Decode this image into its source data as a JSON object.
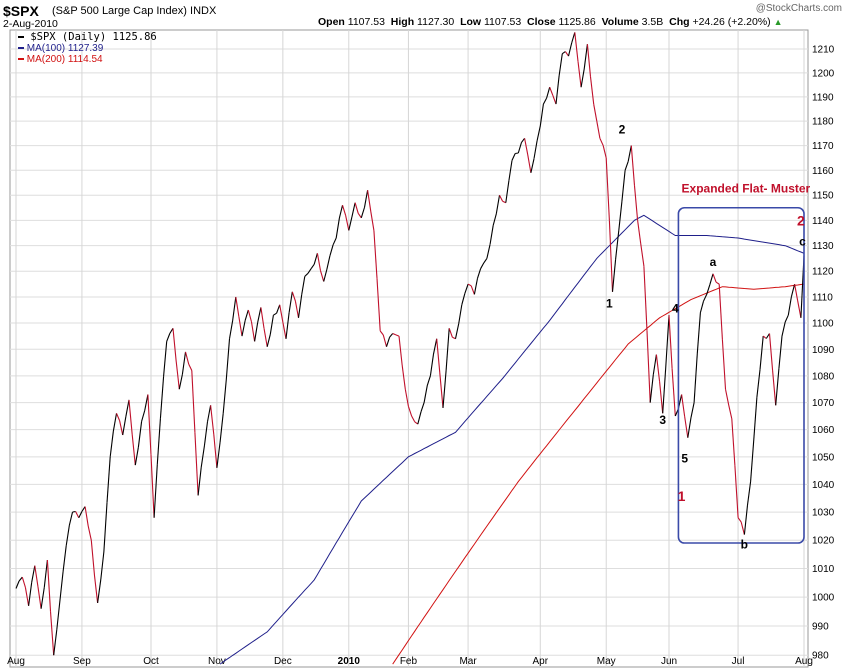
{
  "header": {
    "symbol": "$SPX",
    "name": "(S&P 500 Large Cap Index)",
    "exchange": "INDX",
    "date": "2-Aug-2010",
    "copyright": "@StockCharts.com",
    "quote": [
      {
        "label": "Open",
        "value": "1107.53"
      },
      {
        "label": "High",
        "value": "1127.30"
      },
      {
        "label": "Low",
        "value": "1107.53"
      },
      {
        "label": "Close",
        "value": "1125.86"
      },
      {
        "label": "Volume",
        "value": "3.5B"
      },
      {
        "label": "Chg",
        "value": "+24.26 (+2.20%)"
      }
    ],
    "chg_arrow": "▲"
  },
  "legend": [
    {
      "text": "$SPX (Daily) 1125.86",
      "color": "#000000"
    },
    {
      "text": "MA(100) 1127.39",
      "color": "#1f1f8a"
    },
    {
      "text": "MA(200) 1114.54",
      "color": "#d11111"
    }
  ],
  "chart_data": {
    "type": "line",
    "title": "$SPX (S&P 500 Large Cap Index) INDX",
    "ylim": [
      976,
      1218
    ],
    "grid": true,
    "scale": "log",
    "y_ticks": [
      980,
      990,
      1000,
      1010,
      1020,
      1030,
      1040,
      1050,
      1060,
      1070,
      1080,
      1090,
      1100,
      1110,
      1120,
      1130,
      1140,
      1150,
      1160,
      1170,
      1180,
      1190,
      1200,
      1210
    ],
    "x_ticks": [
      "Aug",
      "Sep",
      "Oct",
      "Nov",
      "Dec",
      "2010",
      "Feb",
      "Mar",
      "Apr",
      "May",
      "Jun",
      "Jul",
      "Aug"
    ],
    "x_tick_index": [
      0,
      21,
      43,
      64,
      85,
      106,
      125,
      144,
      167,
      188,
      208,
      230,
      251
    ],
    "series": [
      {
        "name": "$SPX (Daily)",
        "color": "#000000",
        "down_color": "#c0102b",
        "keypoints": [
          [
            0,
            1003
          ],
          [
            2,
            1007
          ],
          [
            4,
            997
          ],
          [
            6,
            1011
          ],
          [
            8,
            996
          ],
          [
            10,
            1013
          ],
          [
            12,
            980
          ],
          [
            14,
            999
          ],
          [
            16,
            1018
          ],
          [
            18,
            1030
          ],
          [
            20,
            1028
          ],
          [
            22,
            1032
          ],
          [
            24,
            1020
          ],
          [
            26,
            998
          ],
          [
            28,
            1016
          ],
          [
            30,
            1050
          ],
          [
            32,
            1066
          ],
          [
            34,
            1058
          ],
          [
            36,
            1071
          ],
          [
            38,
            1047
          ],
          [
            40,
            1063
          ],
          [
            42,
            1073
          ],
          [
            44,
            1028
          ],
          [
            46,
            1064
          ],
          [
            48,
            1093
          ],
          [
            50,
            1098
          ],
          [
            52,
            1075
          ],
          [
            54,
            1089
          ],
          [
            56,
            1082
          ],
          [
            58,
            1036
          ],
          [
            60,
            1054
          ],
          [
            62,
            1069
          ],
          [
            64,
            1046
          ],
          [
            66,
            1066
          ],
          [
            68,
            1094
          ],
          [
            70,
            1110
          ],
          [
            72,
            1095
          ],
          [
            74,
            1105
          ],
          [
            76,
            1093
          ],
          [
            78,
            1106
          ],
          [
            80,
            1091
          ],
          [
            82,
            1103
          ],
          [
            84,
            1107
          ],
          [
            86,
            1094
          ],
          [
            88,
            1112
          ],
          [
            90,
            1102
          ],
          [
            92,
            1118
          ],
          [
            94,
            1121
          ],
          [
            96,
            1127
          ],
          [
            98,
            1116
          ],
          [
            100,
            1126
          ],
          [
            102,
            1133
          ],
          [
            104,
            1146
          ],
          [
            106,
            1136
          ],
          [
            108,
            1147
          ],
          [
            110,
            1141
          ],
          [
            112,
            1152
          ],
          [
            114,
            1136
          ],
          [
            116,
            1097
          ],
          [
            118,
            1091
          ],
          [
            120,
            1096
          ],
          [
            122,
            1095
          ],
          [
            124,
            1075
          ],
          [
            126,
            1065
          ],
          [
            128,
            1062
          ],
          [
            130,
            1070
          ],
          [
            132,
            1080
          ],
          [
            134,
            1094
          ],
          [
            136,
            1068
          ],
          [
            138,
            1098
          ],
          [
            140,
            1094
          ],
          [
            142,
            1107
          ],
          [
            144,
            1115
          ],
          [
            146,
            1111
          ],
          [
            148,
            1121
          ],
          [
            150,
            1125
          ],
          [
            152,
            1138
          ],
          [
            154,
            1150
          ],
          [
            156,
            1147
          ],
          [
            158,
            1164
          ],
          [
            160,
            1167
          ],
          [
            162,
            1173
          ],
          [
            164,
            1159
          ],
          [
            166,
            1172
          ],
          [
            168,
            1187
          ],
          [
            170,
            1194
          ],
          [
            172,
            1187
          ],
          [
            174,
            1208
          ],
          [
            176,
            1207
          ],
          [
            178,
            1217
          ],
          [
            180,
            1194
          ],
          [
            182,
            1212
          ],
          [
            184,
            1187
          ],
          [
            186,
            1173
          ],
          [
            188,
            1165
          ],
          [
            190,
            1112
          ],
          [
            192,
            1136
          ],
          [
            194,
            1160
          ],
          [
            196,
            1170
          ],
          [
            198,
            1140
          ],
          [
            200,
            1122
          ],
          [
            202,
            1070
          ],
          [
            204,
            1088
          ],
          [
            206,
            1066
          ],
          [
            208,
            1103
          ],
          [
            210,
            1065
          ],
          [
            212,
            1073
          ],
          [
            214,
            1057
          ],
          [
            216,
            1070
          ],
          [
            218,
            1104
          ],
          [
            220,
            1111
          ],
          [
            222,
            1119
          ],
          [
            224,
            1115
          ],
          [
            226,
            1075
          ],
          [
            228,
            1064
          ],
          [
            230,
            1028
          ],
          [
            232,
            1022
          ],
          [
            234,
            1041
          ],
          [
            236,
            1072
          ],
          [
            238,
            1095
          ],
          [
            240,
            1096
          ],
          [
            242,
            1069
          ],
          [
            244,
            1095
          ],
          [
            246,
            1103
          ],
          [
            248,
            1115
          ],
          [
            250,
            1102
          ],
          [
            251,
            1126
          ]
        ]
      },
      {
        "name": "MA(100)",
        "color": "#1f1f8a",
        "keypoints": [
          [
            65,
            977
          ],
          [
            80,
            988
          ],
          [
            95,
            1006
          ],
          [
            110,
            1034
          ],
          [
            125,
            1050
          ],
          [
            140,
            1059
          ],
          [
            155,
            1079
          ],
          [
            170,
            1101
          ],
          [
            185,
            1125
          ],
          [
            197,
            1140
          ],
          [
            200,
            1142
          ],
          [
            210,
            1134
          ],
          [
            220,
            1134
          ],
          [
            230,
            1133
          ],
          [
            245,
            1130
          ],
          [
            251,
            1127
          ]
        ]
      },
      {
        "name": "MA(200)",
        "color": "#d11111",
        "keypoints": [
          [
            120,
            977
          ],
          [
            140,
            1009
          ],
          [
            160,
            1041
          ],
          [
            180,
            1070
          ],
          [
            195,
            1092
          ],
          [
            205,
            1102
          ],
          [
            215,
            1109
          ],
          [
            225,
            1114
          ],
          [
            235,
            1113
          ],
          [
            245,
            1114
          ],
          [
            251,
            1115
          ]
        ]
      }
    ],
    "annotations": [
      {
        "text": "1",
        "color": "#000000",
        "at": [
          189,
          1106
        ]
      },
      {
        "text": "2",
        "color": "#000000",
        "at": [
          193,
          1175
        ]
      },
      {
        "text": "3",
        "color": "#000000",
        "at": [
          206,
          1062
        ]
      },
      {
        "text": "4",
        "color": "#000000",
        "at": [
          210,
          1104
        ]
      },
      {
        "text": "5",
        "color": "#000000",
        "at": [
          213,
          1048
        ]
      },
      {
        "text": "1",
        "color": "#c0102b",
        "at": [
          212,
          1034
        ]
      },
      {
        "text": "a",
        "color": "#000000",
        "at": [
          222,
          1122
        ]
      },
      {
        "text": "b",
        "color": "#000000",
        "at": [
          232,
          1017
        ]
      },
      {
        "text": "c",
        "color": "#000000",
        "at": [
          250.5,
          1130
        ]
      },
      {
        "text": "2",
        "color": "#c0102b",
        "at": [
          250,
          1138
        ]
      },
      {
        "text": "Expanded Flat- Muster",
        "color": "#c0102b",
        "at": [
          212,
          1151
        ]
      }
    ],
    "highlight_box": {
      "x": [
        211,
        251
      ],
      "y": [
        1019,
        1145
      ],
      "color": "#3a4aa8"
    }
  }
}
